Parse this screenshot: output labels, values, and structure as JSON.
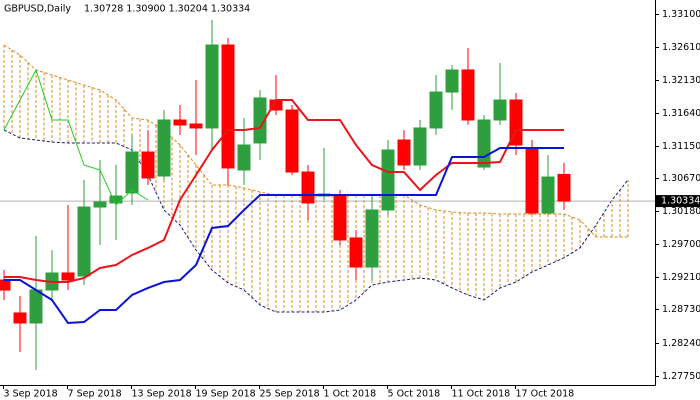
{
  "chart_data": {
    "type": "candlestick",
    "title": "GBPUSD,Daily",
    "ohlc_label": "1.30728 1.30900 1.30204 1.30334",
    "categories": [
      "3 Sep 2018",
      null,
      null,
      null,
      "7 Sep 2018",
      null,
      null,
      null,
      "13 Sep 2018",
      null,
      null,
      null,
      "19 Sep 2018",
      null,
      null,
      null,
      "25 Sep 2018",
      null,
      null,
      null,
      "1 Oct 2018",
      null,
      null,
      null,
      "5 Oct 2018",
      null,
      null,
      null,
      "11 Oct 2018",
      null,
      null,
      null,
      "17 Oct 2018",
      null,
      null,
      null,
      null,
      null,
      null,
      null
    ],
    "open": [
      1.29166,
      1.28678,
      1.2853,
      1.29018,
      1.2927,
      1.29225,
      1.30246,
      1.30306,
      1.30454,
      1.3106,
      1.30705,
      1.31534,
      1.31475,
      1.31416,
      1.32644,
      1.30794,
      1.31194,
      1.3183,
      1.31682,
      1.30764,
      1.30409,
      1.30424,
      1.29788,
      1.29358,
      1.30202,
      1.31238,
      1.30868,
      1.31416,
      1.31948,
      1.32274,
      1.30838,
      1.31534,
      1.3183,
      1.3112,
      1.30158,
      1.30728,
      null,
      null,
      null,
      null
    ],
    "high": [
      1.29314,
      1.2893,
      1.29817,
      1.2961,
      1.30276,
      1.30646,
      1.30942,
      1.30868,
      1.31312,
      1.31386,
      1.31682,
      1.31756,
      1.32126,
      1.33014,
      1.32748,
      1.31564,
      1.31978,
      1.322,
      1.31756,
      1.30868,
      1.3112,
      1.30498,
      1.29906,
      1.30424,
      1.31238,
      1.31386,
      1.31534,
      1.322,
      1.32348,
      1.326,
      1.31608,
      1.32378,
      1.31934,
      1.31238,
      1.31016,
      1.309,
      null,
      null,
      null,
      null
    ],
    "low": [
      1.2887,
      1.281,
      1.27834,
      1.2887,
      1.29018,
      1.29092,
      1.29684,
      1.29758,
      1.30276,
      1.30572,
      1.30646,
      1.31312,
      1.31016,
      1.3109,
      1.30572,
      1.30572,
      1.30942,
      1.31608,
      1.3072,
      1.30054,
      1.3035,
      1.29684,
      1.29166,
      1.29166,
      1.30128,
      1.30794,
      1.30794,
      1.31312,
      1.31682,
      1.3146,
      1.30794,
      1.3146,
      1.31016,
      1.30128,
      1.30128,
      1.30204,
      null,
      null,
      null,
      null
    ],
    "close": [
      1.29018,
      1.2853,
      1.29018,
      1.2927,
      1.29166,
      1.30246,
      1.3032,
      1.30409,
      1.3106,
      1.30676,
      1.31534,
      1.3146,
      1.31416,
      1.32644,
      1.30824,
      1.31164,
      1.3186,
      1.31682,
      1.30764,
      1.30306,
      1.30439,
      1.29758,
      1.29358,
      1.30202,
      1.3109,
      1.30868,
      1.31416,
      1.31948,
      1.32274,
      1.31534,
      1.31534,
      1.3183,
      1.31164,
      1.30158,
      1.3069,
      1.30334,
      null,
      null,
      null,
      null
    ],
    "up_color": "#2e9e3e",
    "down_color": "#ff0000",
    "lines": [
      {
        "color": "#e8161b",
        "width": 2,
        "dash": "none",
        "values": [
          1.2921,
          1.2921,
          1.29166,
          1.29136,
          1.29136,
          1.29196,
          1.29344,
          1.29388,
          1.29536,
          1.2964,
          1.29758,
          1.3035,
          1.3072,
          1.3109,
          1.31386,
          1.31386,
          1.31416,
          1.3183,
          1.3183,
          1.31534,
          1.31534,
          1.31534,
          1.31164,
          1.30868,
          1.30764,
          1.30764,
          1.30498,
          1.3072,
          1.30898,
          1.30898,
          1.30898,
          1.30912,
          1.31386,
          1.31386,
          1.31386,
          1.31386,
          null,
          null,
          null,
          null
        ]
      },
      {
        "color": "#0a14d8",
        "width": 2,
        "dash": "none",
        "values": [
          1.29166,
          1.29166,
          1.29018,
          1.2887,
          1.2853,
          1.28544,
          1.28722,
          1.28722,
          1.28944,
          1.29048,
          1.29136,
          1.29166,
          1.29388,
          1.29936,
          1.29965,
          1.30202,
          1.30424,
          1.30424,
          1.30424,
          1.30424,
          1.30424,
          1.30424,
          1.30424,
          1.30424,
          1.30424,
          1.30424,
          1.30424,
          1.30424,
          1.30986,
          1.30986,
          1.30986,
          1.3112,
          1.3112,
          1.3112,
          1.3112,
          1.3112,
          null,
          null,
          null,
          null
        ]
      },
      {
        "color": "#22cc22",
        "width": 1,
        "dash": "none",
        "values": [
          1.31386,
          1.3183,
          1.32274,
          1.31534,
          1.31534,
          1.30868,
          1.30794,
          1.30276,
          1.30498,
          1.3035,
          null,
          null,
          null,
          null,
          null,
          null,
          null,
          null,
          null,
          null,
          null,
          null,
          null,
          null,
          null,
          null,
          null,
          null,
          null,
          null,
          null,
          null,
          null,
          null,
          null,
          null,
          null,
          null,
          null,
          null
        ]
      }
    ],
    "cloud": {
      "span_a": {
        "color": "#e08a1e",
        "values": [
          1.32644,
          1.32496,
          1.32274,
          1.322,
          1.32126,
          1.32052,
          1.31978,
          1.3183,
          1.31564,
          1.31534,
          1.31386,
          1.31164,
          1.30868,
          1.30572,
          1.30572,
          1.30528,
          1.30468,
          1.30424,
          1.30424,
          1.30424,
          1.30424,
          1.30424,
          1.30424,
          1.30424,
          1.30424,
          1.30424,
          1.30276,
          1.30202,
          1.30172,
          1.30158,
          1.30158,
          1.30143,
          1.30143,
          1.30143,
          1.30143,
          1.30143,
          1.30054,
          1.29802,
          1.29802,
          1.29802
        ]
      },
      "span_b": {
        "color": "#1a1a80",
        "values": [
          1.31386,
          1.31268,
          1.31238,
          1.31208,
          1.31194,
          1.31194,
          1.31194,
          1.31194,
          1.3109,
          1.3072,
          1.30202,
          1.2998,
          1.2961,
          1.29314,
          1.29122,
          1.29018,
          1.28796,
          1.28692,
          1.28692,
          1.28692,
          1.28692,
          1.28722,
          1.2887,
          1.29092,
          1.29136,
          1.29166,
          1.29196,
          1.29166,
          1.29048,
          1.28944,
          1.2887,
          1.29048,
          1.29136,
          1.29284,
          1.29388,
          1.29494,
          1.2964,
          1.2998,
          1.3035,
          1.30646
        ]
      },
      "hatch_color": "#e08a1e"
    },
    "current_price": {
      "value": 1.30334,
      "label": "1.30334"
    },
    "ylim": [
      1.27612,
      1.3331
    ],
    "yticks": [
      {
        "value": 1.331,
        "label": "1.33100"
      },
      {
        "value": 1.3261,
        "label": "1.32610"
      },
      {
        "value": 1.3213,
        "label": "1.32130"
      },
      {
        "value": 1.3164,
        "label": "1.31640"
      },
      {
        "value": 1.3115,
        "label": "1.31150"
      },
      {
        "value": 1.3067,
        "label": "1.30670"
      },
      {
        "value": 1.3018,
        "label": "1.30180"
      },
      {
        "value": 1.297,
        "label": "1.29700"
      },
      {
        "value": 1.2921,
        "label": "1.29210"
      },
      {
        "value": 1.2873,
        "label": "1.28730"
      },
      {
        "value": 1.2824,
        "label": "1.28240"
      },
      {
        "value": 1.2775,
        "label": "1.27750"
      }
    ]
  }
}
